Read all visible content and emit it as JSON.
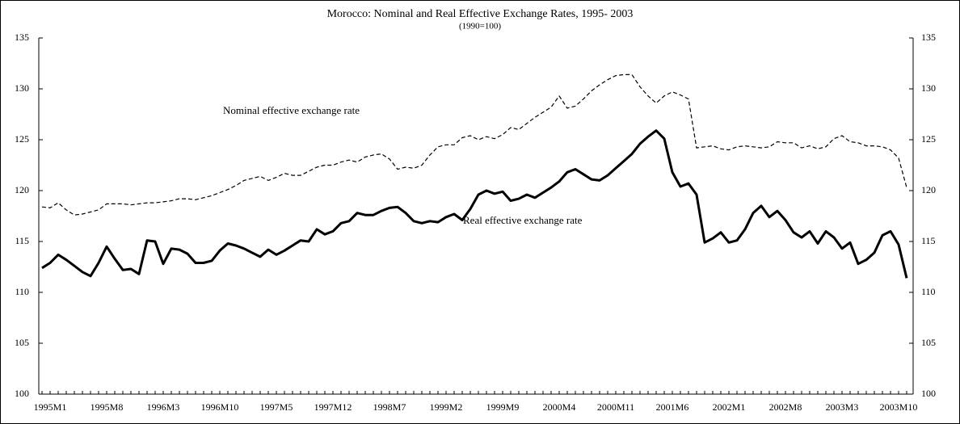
{
  "chart_data": {
    "type": "line",
    "title": "Morocco: Nominal and Real Effective Exchange Rates, 1995- 2003",
    "subtitle": "(1990=100)",
    "categories": [
      "1995M1",
      null,
      null,
      null,
      null,
      null,
      null,
      "1995M8",
      null,
      null,
      null,
      null,
      null,
      null,
      "1996M3",
      null,
      null,
      null,
      null,
      null,
      null,
      "1996M10",
      null,
      null,
      null,
      null,
      null,
      null,
      "1997M5",
      null,
      null,
      null,
      null,
      null,
      null,
      "1997M12",
      null,
      null,
      null,
      null,
      null,
      null,
      "1998M7",
      null,
      null,
      null,
      null,
      null,
      null,
      "1999M2",
      null,
      null,
      null,
      null,
      null,
      null,
      "1999M9",
      null,
      null,
      null,
      null,
      null,
      null,
      "2000M4",
      null,
      null,
      null,
      null,
      null,
      null,
      "2000M11",
      null,
      null,
      null,
      null,
      null,
      null,
      "2001M6",
      null,
      null,
      null,
      null,
      null,
      null,
      "2002M1",
      null,
      null,
      null,
      null,
      null,
      null,
      "2002M8",
      null,
      null,
      null,
      null,
      null,
      null,
      "2003M3",
      null,
      null,
      null,
      null,
      null,
      null,
      "2003M10",
      null,
      null
    ],
    "series": [
      {
        "name": "Nominal effective exchange rate",
        "color": "#000000",
        "dash": true,
        "values": [
          118.4,
          118.3,
          118.8,
          118.1,
          117.6,
          117.7,
          117.9,
          118.1,
          118.7,
          118.7,
          118.7,
          118.6,
          118.7,
          118.8,
          118.8,
          118.9,
          119.0,
          119.2,
          119.2,
          119.1,
          119.3,
          119.5,
          119.8,
          120.1,
          120.5,
          121.0,
          121.2,
          121.4,
          121.0,
          121.3,
          121.7,
          121.5,
          121.5,
          121.9,
          122.3,
          122.5,
          122.5,
          122.8,
          123.0,
          122.8,
          123.3,
          123.5,
          123.6,
          123.1,
          122.1,
          122.3,
          122.2,
          122.5,
          123.5,
          124.3,
          124.5,
          124.5,
          125.2,
          125.4,
          125.0,
          125.3,
          125.1,
          125.5,
          126.2,
          126.0,
          126.6,
          127.2,
          127.7,
          128.2,
          129.3,
          128.1,
          128.3,
          129.0,
          129.8,
          130.4,
          130.9,
          131.3,
          131.4,
          131.4,
          130.2,
          129.3,
          128.6,
          129.3,
          129.7,
          129.4,
          129.0,
          124.2,
          124.3,
          124.4,
          124.1,
          124.0,
          124.3,
          124.4,
          124.3,
          124.2,
          124.3,
          124.8,
          124.7,
          124.7,
          124.2,
          124.4,
          124.1,
          124.3,
          125.1,
          125.4,
          124.8,
          124.7,
          124.4,
          124.4,
          124.3,
          124.0,
          123.2,
          120.3
        ]
      },
      {
        "name": "Real effective exchange rate",
        "color": "#000000",
        "dash": false,
        "values": [
          112.4,
          112.9,
          113.7,
          113.2,
          112.6,
          112.0,
          111.6,
          112.9,
          114.5,
          113.3,
          112.2,
          112.3,
          111.8,
          115.1,
          115.0,
          112.8,
          114.3,
          114.2,
          113.8,
          112.9,
          112.9,
          113.1,
          114.1,
          114.8,
          114.6,
          114.3,
          113.9,
          113.5,
          114.2,
          113.7,
          114.1,
          114.6,
          115.1,
          115.0,
          116.2,
          115.7,
          116.0,
          116.8,
          117.0,
          117.8,
          117.6,
          117.6,
          118.0,
          118.3,
          118.4,
          117.8,
          117.0,
          116.8,
          117.0,
          116.9,
          117.4,
          117.7,
          117.1,
          118.2,
          119.6,
          120.0,
          119.7,
          119.9,
          119.0,
          119.2,
          119.6,
          119.3,
          119.8,
          120.3,
          120.9,
          121.8,
          122.1,
          121.6,
          121.1,
          121.0,
          121.5,
          122.2,
          122.9,
          123.6,
          124.6,
          125.3,
          125.9,
          125.1,
          121.8,
          120.4,
          120.7,
          119.6,
          114.9,
          115.3,
          115.9,
          114.9,
          115.1,
          116.2,
          117.8,
          118.5,
          117.4,
          118.0,
          117.1,
          115.9,
          115.4,
          116.0,
          114.8,
          116.0,
          115.4,
          114.3,
          114.9,
          112.8,
          113.2,
          113.9,
          115.6,
          116.0,
          114.7,
          111.4
        ]
      }
    ],
    "ylim": [
      100,
      135
    ],
    "yticks": [
      100,
      105,
      110,
      115,
      120,
      125,
      130,
      135
    ],
    "y2lim": [
      100,
      135
    ],
    "y2ticks": [
      100,
      105,
      110,
      115,
      120,
      125,
      130,
      135
    ],
    "grid": false
  }
}
